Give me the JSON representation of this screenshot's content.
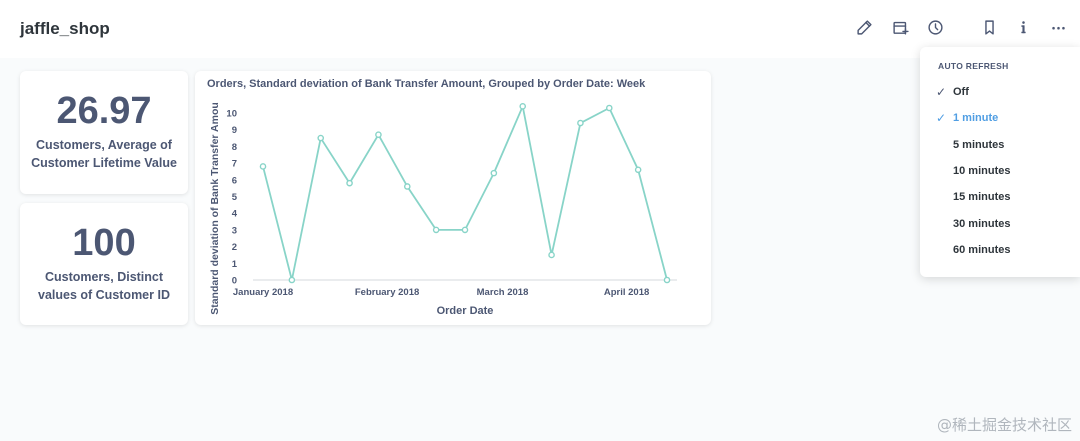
{
  "header": {
    "title": "jaffle_shop",
    "icons": [
      "pencil-icon",
      "add-to-calendar-icon",
      "clock-icon",
      "bookmark-icon",
      "info-icon",
      "more-icon"
    ]
  },
  "cards": [
    {
      "value": "26.97",
      "label": "Customers, Average of Customer Lifetime Value"
    },
    {
      "value": "100",
      "label": "Customers, Distinct values of Customer ID"
    }
  ],
  "chart": {
    "title": "Orders, Standard deviation of Bank Transfer Amount, Grouped by Order Date: Week",
    "ylabel": "Standard deviation of Bank Transfer Amou",
    "xlabel": "Order Date",
    "x_ticks": [
      {
        "label": "January 2018",
        "x_index": 0
      },
      {
        "label": "February 2018",
        "x_index": 4.3
      },
      {
        "label": "March 2018",
        "x_index": 8.3
      },
      {
        "label": "April 2018",
        "x_index": 12.6
      }
    ]
  },
  "chart_data": {
    "type": "line",
    "ylim": [
      0,
      10
    ],
    "y_ticks": [
      0,
      1,
      2,
      3,
      4,
      5,
      6,
      7,
      8,
      9,
      10
    ],
    "series": [
      {
        "values": [
          6.8,
          0,
          8.5,
          5.8,
          8.7,
          5.6,
          3.0,
          3.0,
          6.4,
          10.4,
          1.5,
          9.4,
          10.3,
          6.6,
          0
        ]
      }
    ],
    "color": "#88d4c8"
  },
  "auto_refresh": {
    "title": "AUTO REFRESH",
    "options": [
      {
        "label": "Off",
        "checked": true,
        "active": false
      },
      {
        "label": "1 minute",
        "checked": true,
        "active": true
      },
      {
        "label": "5 minutes",
        "checked": false,
        "active": false
      },
      {
        "label": "10 minutes",
        "checked": false,
        "active": false
      },
      {
        "label": "15 minutes",
        "checked": false,
        "active": false
      },
      {
        "label": "30 minutes",
        "checked": false,
        "active": false
      },
      {
        "label": "60 minutes",
        "checked": false,
        "active": false
      }
    ],
    "check_glyph": "✓"
  },
  "watermark": "@稀土掘金技术社区"
}
